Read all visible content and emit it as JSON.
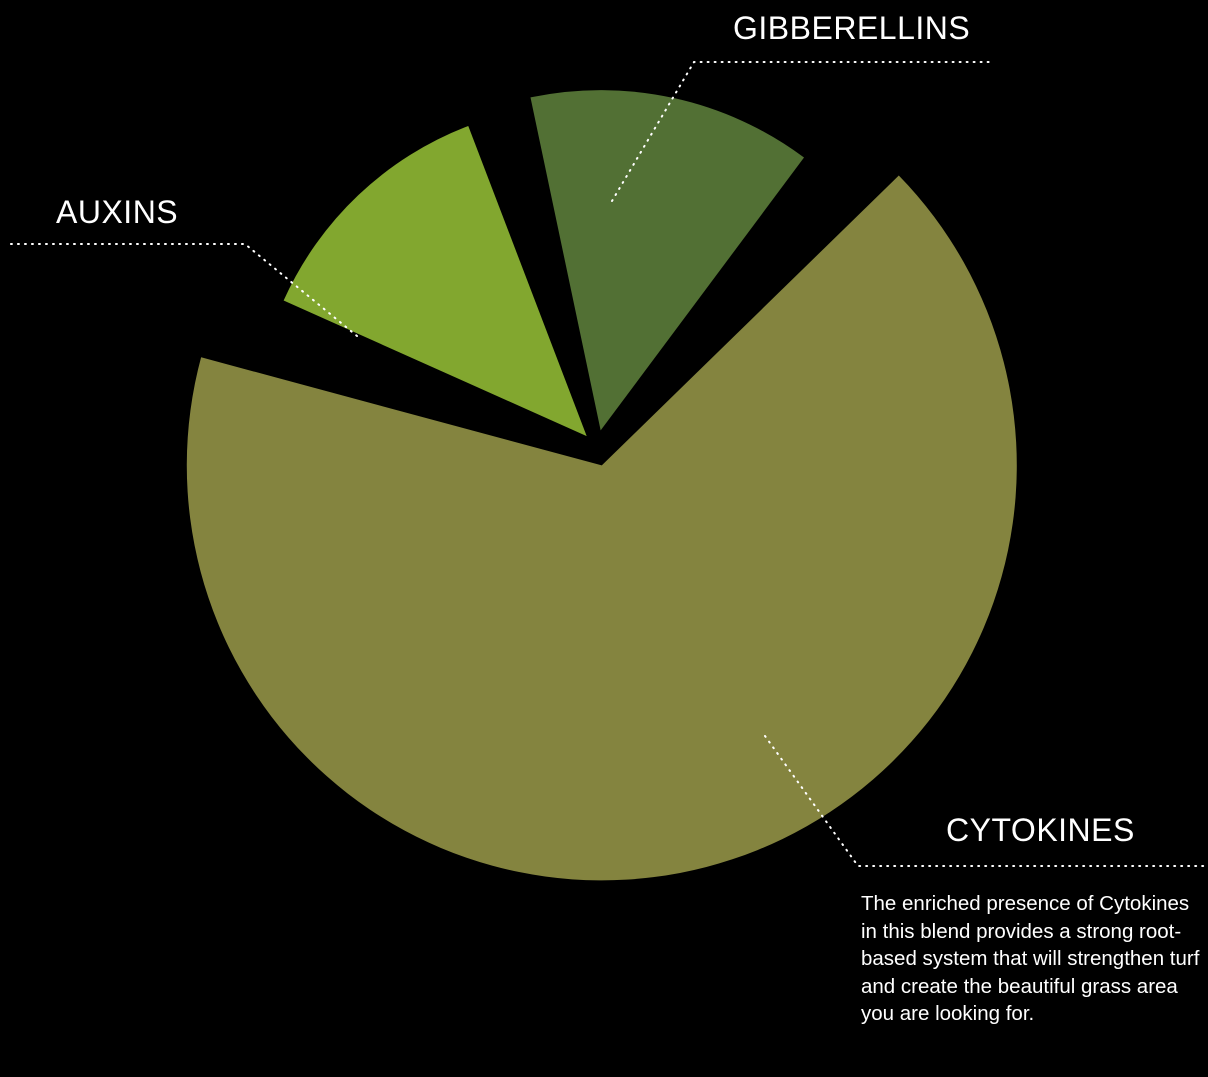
{
  "chart_data": {
    "type": "pie",
    "slices": [
      {
        "label": "AUXINS",
        "value": 15,
        "color": "#82a72f"
      },
      {
        "label": "GIBBERELLINS",
        "value": 16,
        "color": "#527034"
      },
      {
        "label": "CYTOKINES",
        "value": 69,
        "color": "#84843f"
      }
    ],
    "annotation": "The enriched presence of Cytokines in this blend provides a strong root-based system that will strengthen turf and create the beautiful grass area you are looking for."
  },
  "colors": {
    "background": "#000000",
    "text": "#ffffff",
    "leader_line": "#ffffff"
  }
}
